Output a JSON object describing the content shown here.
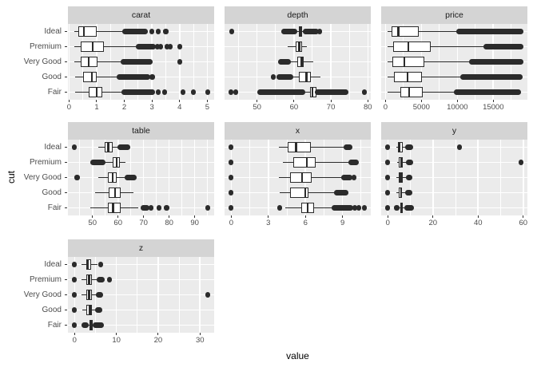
{
  "chart_data": {
    "type": "boxplot",
    "title": "",
    "xlabel": "value",
    "ylabel": "cut",
    "categories": [
      "Ideal",
      "Premium",
      "Very Good",
      "Good",
      "Fair"
    ],
    "facet_columns": 3,
    "legend": "none",
    "grid": "on",
    "colors": {
      "figure_bg": "#ffffff",
      "panel_bg": "#ebebeb",
      "strip_bg": "#d4d4d4",
      "grid": "#ffffff",
      "line": "#2b2b2b",
      "box_fill": "#ffffff",
      "tick_mark": "#333333",
      "tick_text": "#4d4d4d",
      "title_text": "#000000"
    },
    "facets": [
      {
        "name": "carat",
        "xlim": [
          -0.04,
          5.25
        ],
        "ticks": [
          0,
          1,
          2,
          3,
          4,
          5
        ],
        "tick_labels": [
          "0",
          "1",
          "2",
          "3",
          "4",
          "5"
        ],
        "minor_ticks": [
          0.5,
          1.5,
          2.5,
          3.5,
          4.5
        ],
        "rows": [
          {
            "cut": "Ideal",
            "stats": [
              0.2,
              0.35,
              0.54,
              1.01,
              1.99
            ],
            "blobs": [
              [
                2.0,
                2.76
              ]
            ],
            "dots": [
              3.0,
              3.22,
              3.5
            ]
          },
          {
            "cut": "Premium",
            "stats": [
              0.2,
              0.41,
              0.86,
              1.25,
              2.49
            ],
            "blobs": [
              [
                2.51,
                3.05
              ]
            ],
            "dots": [
              3.2,
              3.32,
              3.55,
              3.67,
              4.01
            ]
          },
          {
            "cut": "Very Good",
            "stats": [
              0.2,
              0.41,
              0.71,
              1.02,
              1.92
            ],
            "blobs": [
              [
                1.95,
                2.95
              ]
            ],
            "dots": [
              4.0
            ]
          },
          {
            "cut": "Good",
            "stats": [
              0.23,
              0.5,
              0.82,
              1.01,
              1.76
            ],
            "blobs": [
              [
                1.8,
                2.85
              ]
            ],
            "dots": [
              3.01
            ]
          },
          {
            "cut": "Fair",
            "stats": [
              0.22,
              0.7,
              1.0,
              1.2,
              1.95
            ],
            "blobs": [
              [
                1.98,
                3.01
              ]
            ],
            "dots": [
              3.22,
              3.45,
              4.13,
              4.5,
              5.01
            ]
          }
        ]
      },
      {
        "name": "depth",
        "xlim": [
          41.2,
          80.8
        ],
        "ticks": [
          50,
          60,
          70,
          80
        ],
        "tick_labels": [
          "50",
          "60",
          "70",
          "80"
        ],
        "minor_ticks": [
          45,
          55,
          65,
          75
        ],
        "rows": [
          {
            "cut": "Ideal",
            "stats": [
              60.0,
              61.3,
              61.8,
              62.2,
              63.6
            ],
            "blobs": [
              [
                57.2,
                60.2
              ],
              [
                63.0,
                66.0
              ]
            ],
            "dots": [
              43.1,
              66.9
            ]
          },
          {
            "cut": "Premium",
            "stats": [
              58.2,
              60.5,
              61.4,
              62.1,
              63.5
            ],
            "blobs": [],
            "dots": []
          },
          {
            "cut": "Very Good",
            "stats": [
              58.7,
              60.9,
              62.1,
              62.7,
              65.2
            ],
            "blobs": [
              [
                56.3,
                58.6
              ]
            ],
            "dots": []
          },
          {
            "cut": "Good",
            "stats": [
              59.4,
              61.3,
              63.4,
              64.6,
              67.2
            ],
            "blobs": [
              [
                55.9,
                59.1
              ]
            ],
            "dots": [
              54.4
            ]
          },
          {
            "cut": "Fair",
            "stats": [
              62.5,
              64.4,
              65.0,
              66.0,
              68.0
            ],
            "blobs": [
              [
                50.8,
                62.3
              ],
              [
                66.4,
                74.0
              ]
            ],
            "dots": [
              43.0,
              44.3,
              79.0
            ]
          }
        ]
      },
      {
        "name": "price",
        "xlim": [
          -599,
          19748
        ],
        "ticks": [
          0,
          5000,
          10000,
          15000
        ],
        "tick_labels": [
          "0",
          "5000",
          "10000",
          "15000"
        ],
        "minor_ticks": [
          2500,
          7500,
          12500,
          17500
        ],
        "rows": [
          {
            "cut": "Ideal",
            "stats": [
              326,
              878,
              1810,
              4678,
              10100
            ],
            "blobs": [
              [
                10200,
                18806
              ]
            ],
            "dots": []
          },
          {
            "cut": "Premium",
            "stats": [
              326,
              1046,
              3185,
              6296,
              13900
            ],
            "blobs": [
              [
                14000,
                18823
              ]
            ],
            "dots": []
          },
          {
            "cut": "Very Good",
            "stats": [
              336,
              912,
              2648,
              5373,
              11900
            ],
            "blobs": [
              [
                12000,
                18818
              ]
            ],
            "dots": []
          },
          {
            "cut": "Good",
            "stats": [
              327,
              1145,
              3050,
              5028,
              10600
            ],
            "blobs": [
              [
                10700,
                18788
              ]
            ],
            "dots": []
          },
          {
            "cut": "Fair",
            "stats": [
              337,
              2050,
              3282,
              5206,
              9700
            ],
            "blobs": [
              [
                9800,
                18574
              ]
            ],
            "dots": []
          }
        ]
      },
      {
        "name": "table",
        "xlim": [
          40.4,
          97.6
        ],
        "ticks": [
          50,
          60,
          70,
          80,
          90
        ],
        "tick_labels": [
          "50",
          "60",
          "70",
          "80",
          "90"
        ],
        "minor_ticks": [
          45,
          55,
          65,
          75,
          85,
          95
        ],
        "rows": [
          {
            "cut": "Ideal",
            "stats": [
              52.3,
              54.8,
              56.2,
              57.8,
              60.3
            ],
            "blobs": [
              [
                60.8,
                63.9
              ]
            ],
            "dots": [
              43.0
            ]
          },
          {
            "cut": "Premium",
            "stats": [
              55.2,
              58.0,
              59.5,
              60.7,
              62.8
            ],
            "blobs": [
              [
                50.1,
                54.0
              ]
            ],
            "dots": []
          },
          {
            "cut": "Very Good",
            "stats": [
              52.2,
              56.0,
              58.0,
              59.4,
              62.9
            ],
            "blobs": [
              [
                63.4,
                66.3
              ]
            ],
            "dots": [
              44.0
            ]
          },
          {
            "cut": "Good",
            "stats": [
              51.0,
              56.3,
              58.8,
              60.9,
              66.0
            ],
            "blobs": [],
            "dots": []
          },
          {
            "cut": "Fair",
            "stats": [
              49.0,
              56.0,
              58.1,
              61.0,
              68.0
            ],
            "blobs": [
              [
                69.8,
                71.4
              ]
            ],
            "dots": [
              72.9,
              76.0,
              79.0,
              95.0
            ]
          }
        ]
      },
      {
        "name": "x",
        "xlim": [
          -0.54,
          11.28
        ],
        "ticks": [
          0,
          3,
          6,
          9
        ],
        "tick_labels": [
          "0",
          "3",
          "6",
          "9"
        ],
        "minor_ticks": [
          1.5,
          4.5,
          7.5,
          10.5
        ],
        "rows": [
          {
            "cut": "Ideal",
            "stats": [
              3.85,
              4.54,
              5.25,
              6.44,
              9.26
            ],
            "blobs": [
              [
                9.3,
                9.62
              ]
            ],
            "dots": [
              0
            ]
          },
          {
            "cut": "Premium",
            "stats": [
              4.15,
              5.0,
              6.11,
              6.8,
              9.55
            ],
            "blobs": [
              [
                9.65,
                10.14
              ]
            ],
            "dots": [
              0
            ]
          },
          {
            "cut": "Very Good",
            "stats": [
              3.85,
              4.75,
              5.74,
              6.47,
              9.0
            ],
            "blobs": [
              [
                9.1,
                9.63
              ]
            ],
            "dots": [
              0,
              9.94
            ]
          },
          {
            "cut": "Good",
            "stats": [
              3.9,
              4.75,
              5.98,
              6.25,
              8.4
            ],
            "blobs": [
              [
                8.5,
                9.25
              ]
            ],
            "dots": [
              0
            ]
          },
          {
            "cut": "Fair",
            "stats": [
              4.35,
              5.63,
              6.18,
              6.7,
              8.25
            ],
            "blobs": [
              [
                8.32,
                9.65
              ]
            ],
            "dots": [
              0,
              3.93,
              10.0,
              10.3,
              10.74
            ]
          }
        ]
      },
      {
        "name": "y",
        "xlim": [
          -2.95,
          61.85
        ],
        "ticks": [
          0,
          20,
          40,
          60
        ],
        "tick_labels": [
          "0",
          "20",
          "40",
          "60"
        ],
        "minor_ticks": [
          10,
          30,
          50
        ],
        "rows": [
          {
            "cut": "Ideal",
            "stats": [
              3.85,
              4.55,
              5.26,
              6.45,
              9.2
            ],
            "blobs": [
              [
                8.9,
                10.0
              ]
            ],
            "dots": [
              0,
              31.8
            ]
          },
          {
            "cut": "Premium",
            "stats": [
              4.1,
              5.0,
              6.06,
              6.76,
              9.3
            ],
            "blobs": [
              [
                9.1,
                10.2
              ]
            ],
            "dots": [
              0,
              58.9
            ]
          },
          {
            "cut": "Very Good",
            "stats": [
              3.85,
              4.77,
              5.77,
              6.51,
              9.1
            ],
            "blobs": [
              [
                9.0,
                9.9
              ]
            ],
            "dots": [
              0
            ]
          },
          {
            "cut": "Good",
            "stats": [
              3.9,
              4.79,
              5.99,
              6.27,
              8.6
            ],
            "blobs": [
              [
                8.7,
                9.7
              ]
            ],
            "dots": [
              0
            ]
          },
          {
            "cut": "Fair",
            "stats": [
              4.3,
              5.57,
              6.1,
              6.64,
              8.2
            ],
            "blobs": [
              [
                8.3,
                10.6
              ]
            ],
            "dots": [
              0,
              3.93
            ]
          }
        ]
      },
      {
        "name": "z",
        "xlim": [
          -1.59,
          33.39
        ],
        "ticks": [
          0,
          10,
          20,
          30
        ],
        "tick_labels": [
          "0",
          "10",
          "20",
          "30"
        ],
        "minor_ticks": [
          5,
          15,
          25
        ],
        "rows": [
          {
            "cut": "Ideal",
            "stats": [
              1.7,
              2.8,
              3.23,
              3.98,
              5.5
            ],
            "blobs": [],
            "dots": [
              0,
              6.2
            ]
          },
          {
            "cut": "Premium",
            "stats": [
              1.6,
              2.9,
              3.47,
              4.19,
              5.75
            ],
            "blobs": [
              [
                5.9,
                6.55
              ]
            ],
            "dots": [
              0,
              8.3
            ]
          },
          {
            "cut": "Very Good",
            "stats": [
              1.7,
              2.9,
              3.45,
              4.05,
              5.6
            ],
            "blobs": [
              [
                5.75,
                6.3
              ]
            ],
            "dots": [
              0,
              31.8
            ]
          },
          {
            "cut": "Good",
            "stats": [
              1.8,
              2.85,
              3.7,
              4.2,
              5.4
            ],
            "blobs": [
              [
                5.5,
                6.1
              ]
            ],
            "dots": [
              0
            ]
          },
          {
            "cut": "Fair",
            "stats": [
              2.5,
              3.56,
              3.97,
              4.28,
              5.25
            ],
            "blobs": [
              [
                2.2,
                2.75
              ],
              [
                4.85,
                6.4
              ]
            ],
            "dots": [
              0
            ]
          }
        ]
      }
    ]
  }
}
